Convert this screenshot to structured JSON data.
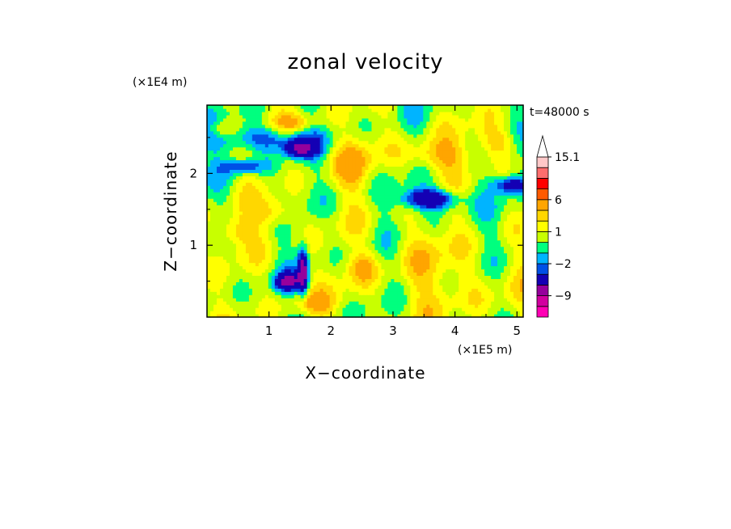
{
  "chart_data": {
    "type": "heatmap",
    "title": "zonal velocity",
    "xlabel": "X−coordinate",
    "ylabel": "Z−coordinate",
    "x_units": "(×1E5 m)",
    "y_units": "(×1E4 m)",
    "time_label": "t=48000 s",
    "xlim": [
      0,
      5.1
    ],
    "ylim": [
      0,
      2.95
    ],
    "x_ticks": [
      "1",
      "2",
      "3",
      "4",
      "5"
    ],
    "x_tick_values": [
      1,
      2,
      3,
      4,
      5
    ],
    "y_ticks": [
      "1",
      "2"
    ],
    "y_tick_values": [
      1,
      2
    ],
    "colorbar": {
      "levels": [
        -15,
        -12,
        -9,
        -6,
        -3,
        -2,
        -1,
        0,
        1,
        2,
        3,
        6,
        9,
        12,
        15.1
      ],
      "colors": [
        "#ff00b4",
        "#d2009f",
        "#96009c",
        "#1400b4",
        "#0050e6",
        "#00b4ff",
        "#00ff7f",
        "#c8ff00",
        "#ffff00",
        "#ffd700",
        "#ffa500",
        "#ff5a00",
        "#ff0000",
        "#ff6e6e",
        "#ffc8c8"
      ],
      "labels": [
        "15.1",
        "6",
        "1",
        "−2",
        "−9"
      ],
      "label_values": [
        15.1,
        6,
        1,
        -2,
        -9
      ],
      "extend": "max"
    },
    "features": [
      {
        "x": 0.8,
        "z": 2.5,
        "sx": 0.9,
        "sz": 0.18,
        "v": -3.5
      },
      {
        "x": 1.5,
        "z": 2.35,
        "sx": 0.25,
        "sz": 0.12,
        "v": -6.5
      },
      {
        "x": 0.6,
        "z": 2.1,
        "sx": 0.35,
        "sz": 0.1,
        "v": -3.5
      },
      {
        "x": 3.6,
        "z": 1.65,
        "sx": 0.45,
        "sz": 0.14,
        "v": -6.5
      },
      {
        "x": 4.9,
        "z": 1.85,
        "sx": 0.3,
        "sz": 0.12,
        "v": -4.5
      },
      {
        "x": 1.3,
        "z": 0.5,
        "sx": 0.2,
        "sz": 0.12,
        "v": -6.5
      },
      {
        "x": 1.55,
        "z": 0.65,
        "sx": 0.08,
        "sz": 0.3,
        "v": -7.5
      },
      {
        "x": 0.25,
        "z": 2.6,
        "sx": 0.25,
        "sz": 0.14,
        "v": 2.6
      },
      {
        "x": 1.4,
        "z": 2.7,
        "sx": 0.35,
        "sz": 0.12,
        "v": 2.6
      },
      {
        "x": 2.35,
        "z": 2.15,
        "sx": 0.35,
        "sz": 0.35,
        "v": 2.4
      },
      {
        "x": 3.7,
        "z": 2.25,
        "sx": 0.55,
        "sz": 0.22,
        "v": 2.7
      },
      {
        "x": 4.7,
        "z": 2.45,
        "sx": 0.3,
        "sz": 0.2,
        "v": 2.5
      },
      {
        "x": 0.45,
        "z": 1.2,
        "sx": 0.3,
        "sz": 0.2,
        "v": 2.4
      },
      {
        "x": 1.1,
        "z": 1.45,
        "sx": 0.3,
        "sz": 0.2,
        "v": 2.5
      },
      {
        "x": 2.5,
        "z": 0.7,
        "sx": 0.25,
        "sz": 0.2,
        "v": 2.3
      },
      {
        "x": 4.0,
        "z": 0.45,
        "sx": 1.2,
        "sz": 0.45,
        "v": 1.2
      },
      {
        "x": 3.4,
        "z": 1.0,
        "sx": 0.5,
        "sz": 0.35,
        "v": 1.1
      },
      {
        "x": 1.7,
        "z": 0.2,
        "sx": 0.35,
        "sz": 0.15,
        "v": 2.4
      }
    ]
  }
}
